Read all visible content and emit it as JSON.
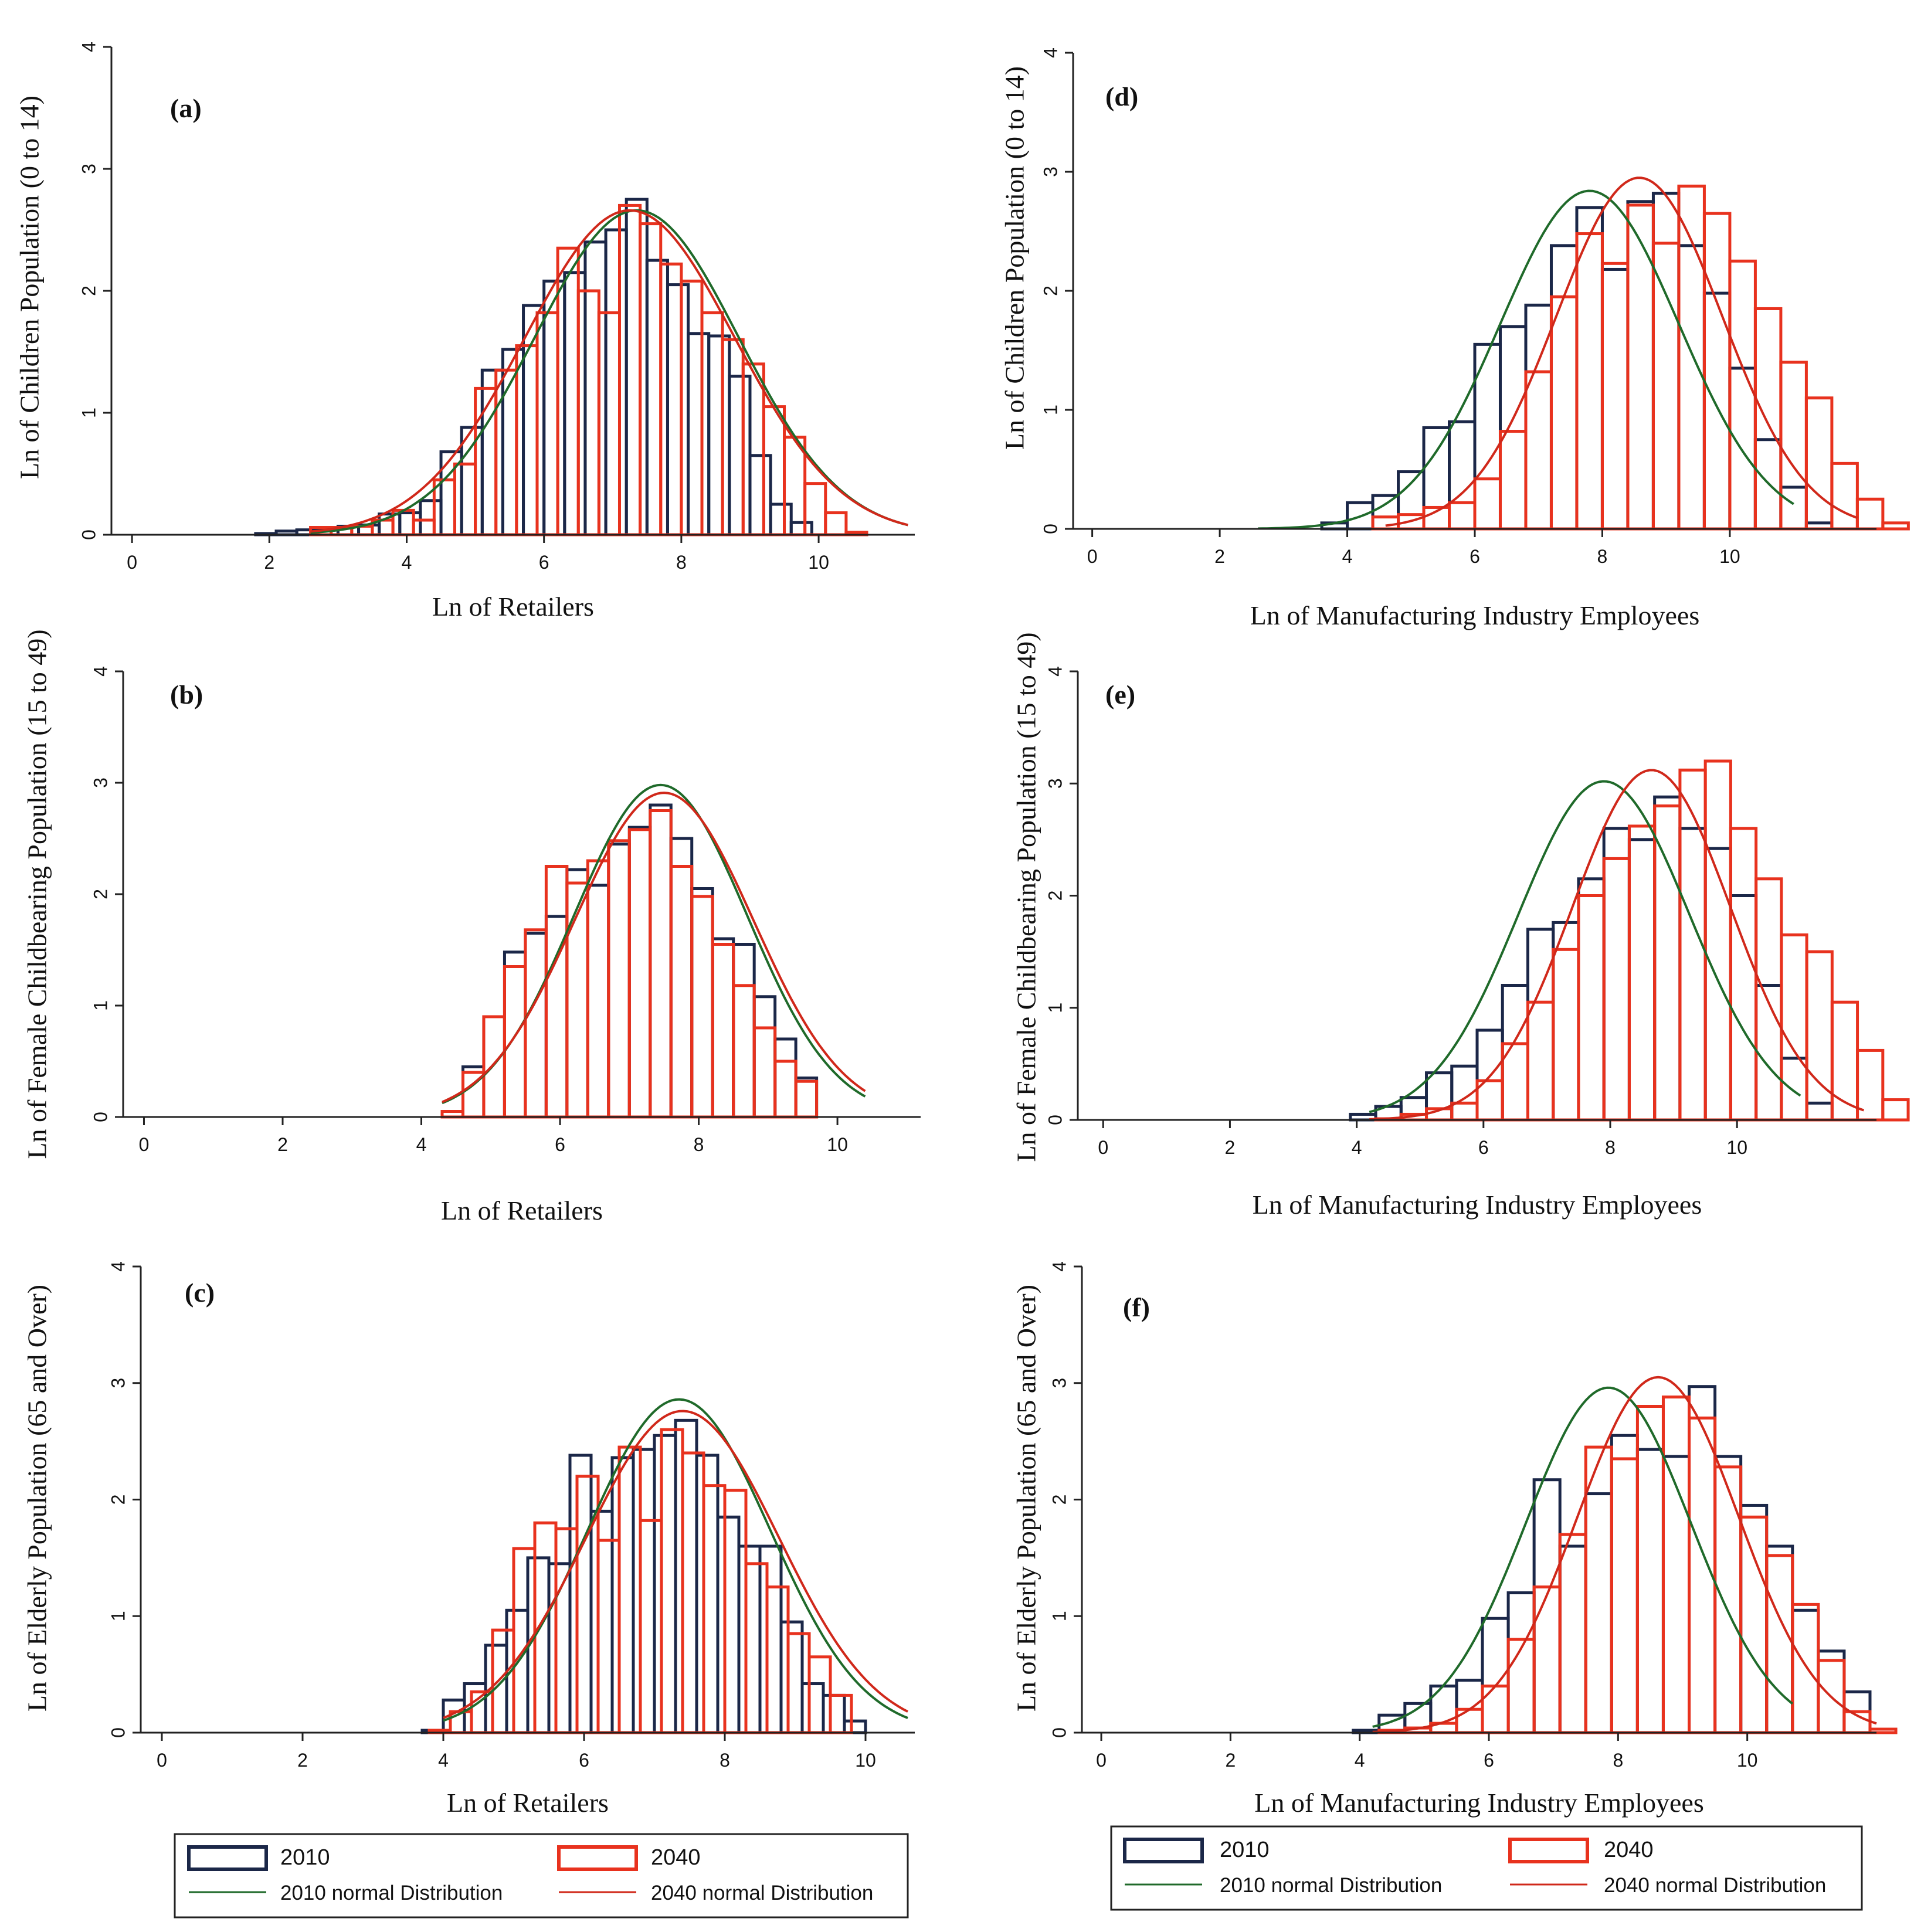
{
  "colors": {
    "bar2010": "#1b2748",
    "bar2040": "#e8321e",
    "curve2010": "#1f6a2a",
    "curve2040": "#d0281a",
    "axis": "#222222"
  },
  "legends": [
    {
      "items": [
        "2010",
        "2040",
        "2010 normal Distribution",
        "2040 normal Distribution"
      ]
    },
    {
      "items": [
        "2010",
        "2040",
        "2010 normal Distribution",
        "2040 normal Distribution"
      ]
    }
  ],
  "chart_data": [
    {
      "id": "a",
      "type": "bar",
      "panel_label": "(a)",
      "xlabel": "Ln of Retailers",
      "ylabel": "Ln of Children Population (0 to 14)",
      "xlim": [
        -0.3,
        11.4
      ],
      "ylim": [
        0,
        4
      ],
      "xticks": [
        "0",
        "2",
        "4",
        "6",
        "8",
        "10"
      ],
      "yticks": [
        "0",
        "1",
        "2",
        "3",
        "4"
      ],
      "bin_width": 0.3,
      "series": [
        {
          "name": "2010",
          "start": 1.8,
          "values": [
            0.01,
            0.03,
            0.04,
            0.05,
            0.07,
            0.08,
            0.17,
            0.18,
            0.28,
            0.68,
            0.88,
            1.35,
            1.52,
            1.88,
            2.08,
            2.15,
            2.4,
            2.5,
            2.75,
            2.25,
            2.05,
            1.65,
            1.63,
            1.3,
            0.65,
            0.25,
            0.1
          ]
        },
        {
          "name": "2040",
          "start": 2.6,
          "values": [
            0.06,
            0.06,
            0.07,
            0.12,
            0.2,
            0.12,
            0.45,
            0.58,
            1.2,
            1.35,
            1.55,
            1.82,
            2.35,
            2.0,
            1.82,
            2.7,
            2.55,
            2.22,
            2.08,
            1.82,
            1.6,
            1.4,
            1.05,
            0.8,
            0.42,
            0.18,
            0.02
          ]
        }
      ],
      "normal": [
        {
          "name": "2010 normal Distribution",
          "mean": 7.35,
          "peak": 2.66,
          "sd": 1.49,
          "from": 2.6,
          "to": 11.3
        },
        {
          "name": "2040 normal Distribution",
          "mean": 7.25,
          "peak": 2.66,
          "sd": 1.53,
          "from": 2.6,
          "to": 11.3
        }
      ]
    },
    {
      "id": "b",
      "type": "bar",
      "panel_label": "(b)",
      "xlabel": "Ln of Retailers",
      "ylabel": "Ln of Female Childbearing Population (15 to 49)",
      "xlim": [
        -0.3,
        11.2
      ],
      "ylim": [
        0,
        4
      ],
      "xticks": [
        "0",
        "2",
        "4",
        "6",
        "8",
        "10"
      ],
      "yticks": [
        "0",
        "1",
        "2",
        "3",
        "4"
      ],
      "bin_width": 0.3,
      "series": [
        {
          "name": "2010",
          "start": 4.6,
          "values": [
            0.45,
            0.9,
            1.48,
            1.65,
            1.8,
            2.22,
            2.08,
            2.45,
            2.6,
            2.8,
            2.5,
            2.05,
            1.6,
            1.55,
            1.08,
            0.7,
            0.35
          ]
        },
        {
          "name": "2040",
          "start": 4.3,
          "values": [
            0.05,
            0.4,
            0.9,
            1.35,
            1.68,
            2.25,
            2.1,
            2.3,
            2.48,
            2.58,
            2.75,
            2.25,
            1.98,
            1.55,
            1.18,
            0.8,
            0.5,
            0.32
          ]
        }
      ],
      "normal": [
        {
          "name": "2010 normal Distribution",
          "mean": 7.45,
          "peak": 2.98,
          "sd": 1.25,
          "from": 4.3,
          "to": 10.4
        },
        {
          "name": "2040 normal Distribution",
          "mean": 7.5,
          "peak": 2.91,
          "sd": 1.29,
          "from": 4.3,
          "to": 10.4
        }
      ]
    },
    {
      "id": "c",
      "type": "bar",
      "panel_label": "(c)",
      "xlabel": "Ln of Retailers",
      "ylabel": "Ln of Elderly Population (65 and Over)",
      "xlim": [
        -0.3,
        10.7
      ],
      "ylim": [
        0,
        4
      ],
      "xticks": [
        "0",
        "2",
        "4",
        "6",
        "8",
        "10"
      ],
      "yticks": [
        "0",
        "1",
        "2",
        "3",
        "4"
      ],
      "bin_width": 0.3,
      "series": [
        {
          "name": "2010",
          "start": 3.7,
          "values": [
            0.02,
            0.28,
            0.42,
            0.75,
            1.05,
            1.5,
            1.45,
            2.38,
            1.9,
            2.36,
            2.43,
            2.55,
            2.68,
            2.38,
            1.85,
            1.6,
            1.6,
            0.95,
            0.42,
            0.32,
            0.1
          ]
        },
        {
          "name": "2040",
          "start": 3.8,
          "values": [
            0.02,
            0.18,
            0.35,
            0.88,
            1.58,
            1.8,
            1.75,
            2.2,
            1.65,
            2.45,
            1.82,
            2.6,
            2.4,
            2.12,
            2.08,
            1.45,
            1.25,
            0.85,
            0.65,
            0.32
          ]
        }
      ],
      "normal": [
        {
          "name": "2010 normal Distribution",
          "mean": 7.35,
          "peak": 2.86,
          "sd": 1.3,
          "from": 4.0,
          "to": 10.6
        },
        {
          "name": "2040 normal Distribution",
          "mean": 7.4,
          "peak": 2.76,
          "sd": 1.37,
          "from": 4.0,
          "to": 10.6
        }
      ]
    },
    {
      "id": "d",
      "type": "bar",
      "panel_label": "(d)",
      "xlabel": "Ln of Manufacturing Industry Employees",
      "ylabel": "Ln of Children Population (0 to 14)",
      "xlim": [
        -0.3,
        12.3
      ],
      "ylim": [
        0,
        4
      ],
      "xticks": [
        "0",
        "2",
        "4",
        "6",
        "8",
        "10"
      ],
      "yticks": [
        "0",
        "1",
        "2",
        "3",
        "4"
      ],
      "bin_width": 0.4,
      "series": [
        {
          "name": "2010",
          "start": 3.6,
          "values": [
            0.05,
            0.22,
            0.28,
            0.48,
            0.85,
            0.9,
            1.55,
            1.7,
            1.88,
            2.38,
            2.7,
            2.18,
            2.75,
            2.82,
            2.38,
            1.98,
            1.35,
            0.75,
            0.35,
            0.05
          ]
        },
        {
          "name": "2040",
          "start": 4.4,
          "values": [
            0.1,
            0.12,
            0.18,
            0.22,
            0.42,
            0.82,
            1.32,
            1.95,
            2.48,
            2.23,
            2.72,
            2.4,
            2.88,
            2.65,
            2.25,
            1.85,
            1.4,
            1.1,
            0.55,
            0.25,
            0.05
          ]
        }
      ],
      "normal": [
        {
          "name": "2010 normal Distribution",
          "mean": 7.8,
          "peak": 2.84,
          "sd": 1.4,
          "from": 2.6,
          "to": 11.0
        },
        {
          "name": "2040 normal Distribution",
          "mean": 8.58,
          "peak": 2.95,
          "sd": 1.3,
          "from": 4.6,
          "to": 12.0
        }
      ]
    },
    {
      "id": "e",
      "type": "bar",
      "panel_label": "(e)",
      "xlabel": "Ln of Manufacturing Industry Employees",
      "ylabel": "Ln of Female Childbearing Population (15 to 49)",
      "xlim": [
        -0.4,
        12.2
      ],
      "ylim": [
        0,
        4
      ],
      "xticks": [
        "0",
        "2",
        "4",
        "6",
        "8",
        "10"
      ],
      "yticks": [
        "0",
        "1",
        "2",
        "3",
        "4"
      ],
      "bin_width": 0.4,
      "series": [
        {
          "name": "2010",
          "start": 3.9,
          "values": [
            0.05,
            0.12,
            0.2,
            0.42,
            0.48,
            0.8,
            1.2,
            1.7,
            1.76,
            2.15,
            2.6,
            2.5,
            2.88,
            2.6,
            2.42,
            2.0,
            1.2,
            0.55,
            0.15
          ]
        },
        {
          "name": "2040",
          "start": 4.3,
          "values": [
            0.01,
            0.05,
            0.1,
            0.15,
            0.35,
            0.68,
            1.05,
            1.52,
            2.0,
            2.33,
            2.62,
            2.8,
            3.12,
            3.2,
            2.6,
            2.15,
            1.65,
            1.5,
            1.05,
            0.62,
            0.18
          ]
        }
      ],
      "normal": [
        {
          "name": "2010 normal Distribution",
          "mean": 7.9,
          "peak": 3.02,
          "sd": 1.35,
          "from": 4.2,
          "to": 11.0
        },
        {
          "name": "2040 normal Distribution",
          "mean": 8.65,
          "peak": 3.12,
          "sd": 1.25,
          "from": 4.2,
          "to": 12.0
        }
      ]
    },
    {
      "id": "f",
      "type": "bar",
      "panel_label": "(f)",
      "xlabel": "Ln of Manufacturing Industry Employees",
      "ylabel": "Ln of Elderly Population (65 and Over)",
      "xlim": [
        -0.3,
        12.0
      ],
      "ylim": [
        0,
        4
      ],
      "xticks": [
        "0",
        "2",
        "4",
        "6",
        "8",
        "10"
      ],
      "yticks": [
        "0",
        "1",
        "2",
        "3",
        "4"
      ],
      "bin_width": 0.4,
      "series": [
        {
          "name": "2010",
          "start": 3.9,
          "values": [
            0.02,
            0.15,
            0.25,
            0.4,
            0.45,
            0.98,
            1.2,
            2.17,
            1.6,
            2.05,
            2.55,
            2.43,
            2.37,
            2.97,
            2.37,
            1.95,
            1.6,
            1.05,
            0.7,
            0.35
          ]
        },
        {
          "name": "2040",
          "start": 4.3,
          "values": [
            0.02,
            0.04,
            0.08,
            0.2,
            0.4,
            0.8,
            1.25,
            1.7,
            2.45,
            2.35,
            2.8,
            2.88,
            2.7,
            2.28,
            1.85,
            1.52,
            1.1,
            0.62,
            0.18,
            0.03
          ]
        }
      ],
      "normal": [
        {
          "name": "2010 normal Distribution",
          "mean": 7.85,
          "peak": 2.96,
          "sd": 1.28,
          "from": 4.2,
          "to": 10.7
        },
        {
          "name": "2040 normal Distribution",
          "mean": 8.62,
          "peak": 3.05,
          "sd": 1.25,
          "from": 4.2,
          "to": 12.0
        }
      ]
    }
  ]
}
